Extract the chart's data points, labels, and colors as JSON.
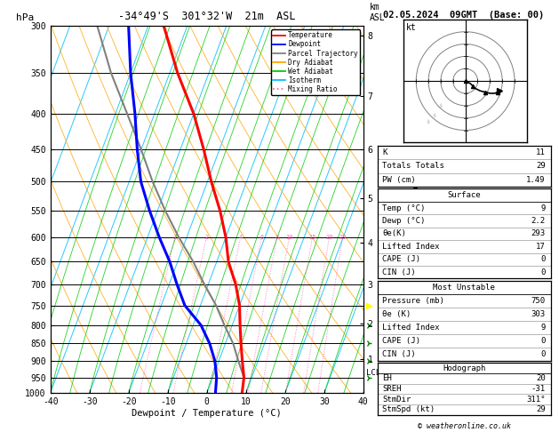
{
  "title_left": "-34°49'S  301°32'W  21m  ASL",
  "title_right": "02.05.2024  09GMT  (Base: 00)",
  "xlabel": "Dewpoint / Temperature (°C)",
  "pressure_major": [
    300,
    350,
    400,
    450,
    500,
    550,
    600,
    650,
    700,
    750,
    800,
    850,
    900,
    950,
    1000
  ],
  "pmin": 300,
  "pmax": 1000,
  "tmin": -40,
  "tmax": 40,
  "skew": 35,
  "isotherm_color": "#00BFFF",
  "dry_adiabat_color": "#FFA500",
  "wet_adiabat_color": "#00CC00",
  "mixing_ratio_color": "#FF69B4",
  "temp_color": "#FF0000",
  "dewp_color": "#0000FF",
  "parcel_color": "#808080",
  "temp_profile_p": [
    1000,
    950,
    900,
    850,
    800,
    750,
    700,
    650,
    600,
    550,
    500,
    450,
    400,
    350,
    300
  ],
  "temp_profile_t": [
    9,
    8,
    6,
    4,
    2,
    0,
    -3,
    -7,
    -10,
    -14,
    -19,
    -24,
    -30,
    -38,
    -46
  ],
  "dewp_profile_p": [
    1000,
    950,
    900,
    850,
    800,
    750,
    700,
    650,
    600,
    550,
    500,
    450,
    400,
    350,
    300
  ],
  "dewp_profile_t": [
    2.2,
    1,
    -1,
    -4,
    -8,
    -14,
    -18,
    -22,
    -27,
    -32,
    -37,
    -41,
    -45,
    -50,
    -55
  ],
  "parcel_profile_p": [
    950,
    900,
    850,
    800,
    750,
    700,
    650,
    600,
    550,
    500,
    450,
    400,
    350,
    300
  ],
  "parcel_profile_t": [
    8,
    5,
    2,
    -2,
    -6,
    -11,
    -16,
    -22,
    -28,
    -34,
    -40,
    -47,
    -55,
    -63
  ],
  "mixing_ratios": [
    1,
    2,
    4,
    6,
    8,
    10,
    15,
    20,
    25
  ],
  "km_ticks": [
    1,
    2,
    3,
    4,
    5,
    6,
    7,
    8
  ],
  "km_pressures": [
    895,
    795,
    700,
    610,
    528,
    450,
    378,
    310
  ],
  "lcl_pressure": 960,
  "legend_entries": [
    {
      "label": "Temperature",
      "color": "#FF0000",
      "ls": "-"
    },
    {
      "label": "Dewpoint",
      "color": "#0000FF",
      "ls": "-"
    },
    {
      "label": "Parcel Trajectory",
      "color": "#808080",
      "ls": "-"
    },
    {
      "label": "Dry Adiabat",
      "color": "#FFA500",
      "ls": "-"
    },
    {
      "label": "Wet Adiabat",
      "color": "#00CC00",
      "ls": "-"
    },
    {
      "label": "Isotherm",
      "color": "#00BFFF",
      "ls": "-"
    },
    {
      "label": "Mixing Ratio",
      "color": "#FF69B4",
      "ls": ":"
    }
  ],
  "hodo_u": [
    2,
    4,
    6,
    8,
    10,
    12,
    14,
    16,
    18,
    20,
    22
  ],
  "hodo_v": [
    -2,
    -4,
    -5,
    -6,
    -7,
    -8,
    -9,
    -10,
    -10,
    -9,
    -8
  ],
  "wind_p_red": [
    300,
    400,
    500
  ],
  "wind_p_yellow": [
    750
  ],
  "wind_p_green": [
    950,
    900,
    850,
    800
  ],
  "table_rows_top": [
    [
      "K",
      "11"
    ],
    [
      "Totals Totals",
      "29"
    ],
    [
      "PW (cm)",
      "1.49"
    ]
  ],
  "table_surface_title": "Surface",
  "table_surface_rows": [
    [
      "Temp (°C)",
      "9"
    ],
    [
      "Dewp (°C)",
      "2.2"
    ],
    [
      "θe(K)",
      "293"
    ],
    [
      "Lifted Index",
      "17"
    ],
    [
      "CAPE (J)",
      "0"
    ],
    [
      "CIN (J)",
      "0"
    ]
  ],
  "table_mu_title": "Most Unstable",
  "table_mu_rows": [
    [
      "Pressure (mb)",
      "750"
    ],
    [
      "θe (K)",
      "303"
    ],
    [
      "Lifted Index",
      "9"
    ],
    [
      "CAPE (J)",
      "0"
    ],
    [
      "CIN (J)",
      "0"
    ]
  ],
  "table_hodo_title": "Hodograph",
  "table_hodo_rows": [
    [
      "EH",
      "20"
    ],
    [
      "SREH",
      "-31"
    ],
    [
      "StmDir",
      "311°"
    ],
    [
      "StmSpd (kt)",
      "29"
    ]
  ],
  "copyright": "© weatheronline.co.uk"
}
